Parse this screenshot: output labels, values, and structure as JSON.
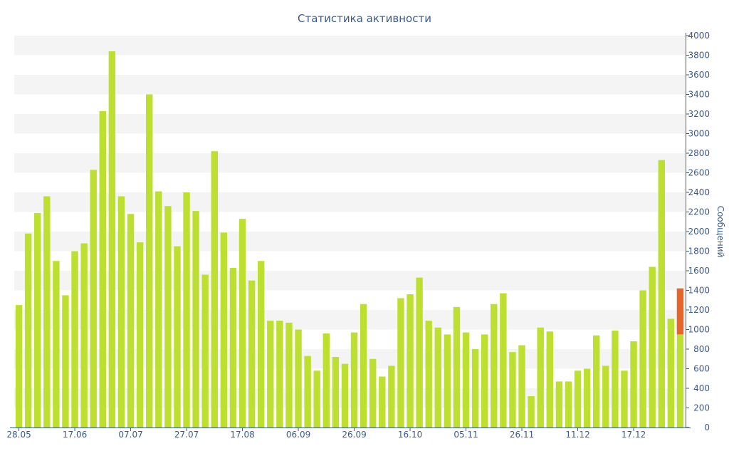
{
  "chart_data": {
    "type": "bar",
    "title": "Статистика активности",
    "ylabel": "Сообщений",
    "xlabel": "",
    "ylim": [
      0,
      4000
    ],
    "y_ticks": [
      0,
      200,
      400,
      600,
      800,
      1000,
      1200,
      1400,
      1600,
      1800,
      2000,
      2200,
      2400,
      2600,
      2800,
      3000,
      3200,
      3400,
      3600,
      3800,
      4000
    ],
    "y_axis_side": "right",
    "x_tick_labels": [
      {
        "index": 0,
        "label": "28.05"
      },
      {
        "index": 6,
        "label": "17.06"
      },
      {
        "index": 12,
        "label": "07.07"
      },
      {
        "index": 18,
        "label": "27.07"
      },
      {
        "index": 24,
        "label": "17.08"
      },
      {
        "index": 30,
        "label": "06.09"
      },
      {
        "index": 36,
        "label": "26.09"
      },
      {
        "index": 42,
        "label": "16.10"
      },
      {
        "index": 48,
        "label": "05.11"
      },
      {
        "index": 54,
        "label": "26.11"
      },
      {
        "index": 60,
        "label": "11.12"
      },
      {
        "index": 66,
        "label": "17.12"
      }
    ],
    "grid": "alternating horizontal bands",
    "colors": {
      "bar": "#bde030",
      "highlight": "#e8652a",
      "band": "#f4f4f4",
      "text": "#3b5a8c",
      "axis": "#3b5a8c"
    },
    "series": [
      {
        "values": [
          1250,
          1980,
          2190,
          2360,
          1700,
          1350,
          1800,
          1880,
          2630,
          3230,
          3840,
          2360,
          2180,
          1890,
          3400,
          2410,
          2260,
          1850,
          2400,
          2210,
          1560,
          2820,
          1990,
          1630,
          2130,
          1500,
          1700,
          1090,
          1090,
          1070,
          1000,
          730,
          580,
          960,
          720,
          650,
          970,
          1260,
          700,
          520,
          630,
          1320,
          1360,
          1530,
          1090,
          1020,
          950,
          1230,
          970,
          800,
          950,
          1260,
          1370,
          770,
          840,
          320,
          1020,
          980,
          470,
          470,
          580,
          600,
          940,
          630,
          990,
          580,
          880,
          1400,
          1640,
          2730,
          1110,
          950
        ]
      },
      {
        "values": [
          0,
          0,
          0,
          0,
          0,
          0,
          0,
          0,
          0,
          0,
          0,
          0,
          0,
          0,
          0,
          0,
          0,
          0,
          0,
          0,
          0,
          0,
          0,
          0,
          0,
          0,
          0,
          0,
          0,
          0,
          0,
          0,
          0,
          0,
          0,
          0,
          0,
          0,
          0,
          0,
          0,
          0,
          0,
          0,
          0,
          0,
          0,
          0,
          0,
          0,
          0,
          0,
          0,
          0,
          0,
          0,
          0,
          0,
          0,
          0,
          0,
          0,
          0,
          0,
          0,
          0,
          0,
          0,
          0,
          0,
          0,
          470
        ]
      }
    ]
  }
}
